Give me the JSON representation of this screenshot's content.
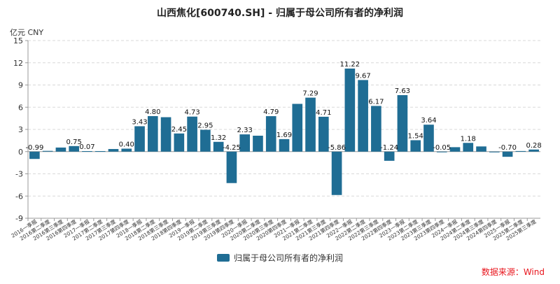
{
  "colors": {
    "bar": "#1f6d94",
    "source": "#e8141c",
    "axis": "#999999",
    "grid": "#d8d8d8",
    "text": "#333333"
  },
  "chart_data": {
    "type": "bar",
    "title": "山西焦化[600740.SH] - 归属于母公司所有者的净利润",
    "unit_label": "亿元  CNY",
    "legend_label": "归属于母公司所有者的净利润",
    "source": "数据来源：Wind",
    "ylim": [
      -9,
      15
    ],
    "yticks": [
      -9,
      -6,
      -3,
      0,
      3,
      6,
      9,
      12,
      15
    ],
    "grid": true,
    "categories": [
      "2016一季报",
      "2016第二季度",
      "2016第三季度",
      "2016第四季度",
      "2017一季报",
      "2017第二季度",
      "2017第三季度",
      "2017第四季度",
      "2018一季报",
      "2018第二季度",
      "2018第三季度",
      "2018第四季度",
      "2019一季报",
      "2019第二季度",
      "2019第三季度",
      "2019第四季度",
      "2020一季报",
      "2020第二季度",
      "2020第三季度",
      "2020第四季度",
      "2021一季报",
      "2021第二季度",
      "2021第三季度",
      "2021第四季度",
      "2022一季报",
      "2022第二季度",
      "2022第三季度",
      "2022第四季度",
      "2023一季报",
      "2023第二季度",
      "2023第三季度",
      "2023第四季度",
      "2024一季报",
      "2024第二季度",
      "2024第三季度",
      "2024第四季度",
      "2025一季报",
      "2025第二季度",
      "2025第三季度"
    ],
    "values": [
      -0.99,
      0.1,
      0.55,
      0.75,
      0.07,
      0.07,
      0.35,
      0.4,
      3.43,
      4.8,
      4.65,
      2.45,
      4.73,
      2.95,
      1.32,
      -4.25,
      2.33,
      2.15,
      4.79,
      1.69,
      6.45,
      7.29,
      4.71,
      -5.86,
      11.22,
      9.67,
      6.17,
      -1.24,
      7.63,
      1.54,
      3.64,
      -0.05,
      0.6,
      1.18,
      0.7,
      -0.1,
      -0.7,
      0.08,
      0.28
    ],
    "labels": [
      "-0.99",
      "",
      "",
      "0.75",
      "0.07",
      "",
      "",
      "0.40",
      "3.43",
      "4.80",
      "",
      "2.45",
      "4.73",
      "2.95",
      "1.32",
      "-4.25",
      "2.33",
      "",
      "4.79",
      "1.69",
      "",
      "7.29",
      "4.71",
      "-5.86",
      "11.22",
      "9.67",
      "6.17",
      "-1.24",
      "7.63",
      "1.54",
      "3.64",
      "-0.05",
      "",
      "1.18",
      "",
      "",
      "-0.70",
      "",
      "0.28"
    ]
  }
}
